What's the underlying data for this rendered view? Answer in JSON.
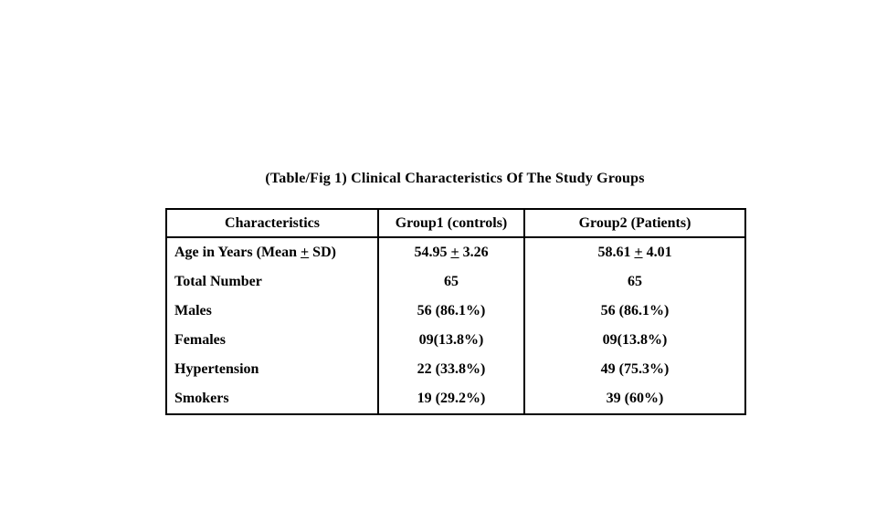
{
  "page": {
    "background_color": "#ffffff",
    "text_color": "#000000"
  },
  "title": "(Table/Fig 1) Clinical Characteristics Of The Study Groups",
  "table": {
    "headers": {
      "characteristics": "Characteristics",
      "group1": "Group1 (controls)",
      "group2": "Group2 (Patients)"
    },
    "rows": [
      {
        "label": "Age in Years (Mean ± SD)",
        "group1": "54.95 ± 3.26",
        "group2": "58.61 ± 4.01"
      },
      {
        "label": "Total Number",
        "group1": "65",
        "group2": "65"
      },
      {
        "label": "Males",
        "group1": "56 (86.1%)",
        "group2": "56 (86.1%)"
      },
      {
        "label": "Females",
        "group1": "09(13.8%)",
        "group2": "09(13.8%)"
      },
      {
        "label": "Hypertension",
        "group1": "22 (33.8%)",
        "group2": "49 (75.3%)"
      },
      {
        "label": "Smokers",
        "group1": "19 (29.2%)",
        "group2": "39 (60%)"
      }
    ]
  }
}
